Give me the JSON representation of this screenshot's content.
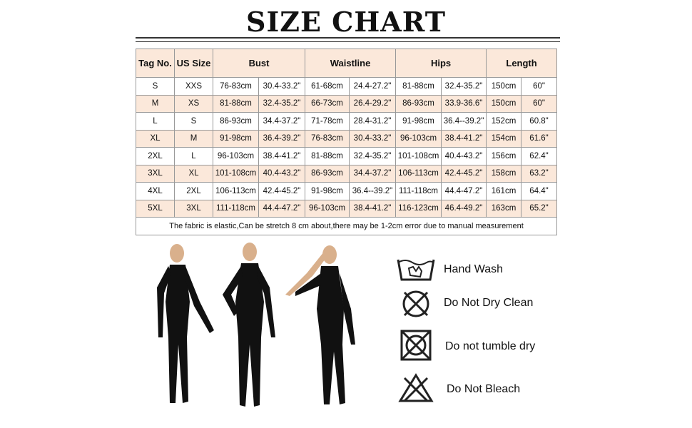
{
  "title": "SIZE CHART",
  "headers": [
    "Tag No.",
    "US Size",
    "Bust",
    "Waistline",
    "Hips",
    "Length"
  ],
  "rows": [
    [
      "S",
      "XXS",
      "76-83cm",
      "30.4-33.2\"",
      "61-68cm",
      "24.4-27.2\"",
      "81-88cm",
      "32.4-35.2\"",
      "150cm",
      "60\""
    ],
    [
      "M",
      "XS",
      "81-88cm",
      "32.4-35.2\"",
      "66-73cm",
      "26.4-29.2\"",
      "86-93cm",
      "33.9-36.6\"",
      "150cm",
      "60\""
    ],
    [
      "L",
      "S",
      "86-93cm",
      "34.4-37.2\"",
      "71-78cm",
      "28.4-31.2\"",
      "91-98cm",
      "36.4--39.2\"",
      "152cm",
      "60.8\""
    ],
    [
      "XL",
      "M",
      "91-98cm",
      "36.4-39.2\"",
      "76-83cm",
      "30.4-33.2\"",
      "96-103cm",
      "38.4-41.2\"",
      "154cm",
      "61.6\""
    ],
    [
      "2XL",
      "L",
      "96-103cm",
      "38.4-41.2\"",
      "81-88cm",
      "32.4-35.2\"",
      "101-108cm",
      "40.4-43.2\"",
      "156cm",
      "62.4\""
    ],
    [
      "3XL",
      "XL",
      "101-108cm",
      "40.4-43.2\"",
      "86-93cm",
      "34.4-37.2\"",
      "106-113cm",
      "42.4-45.2\"",
      "158cm",
      "63.2\""
    ],
    [
      "4XL",
      "2XL",
      "106-113cm",
      "42.4-45.2\"",
      "91-98cm",
      "36.4--39.2\"",
      "111-118cm",
      "44.4-47.2\"",
      "161cm",
      "64.4\""
    ],
    [
      "5XL",
      "3XL",
      "111-118cm",
      "44.4-47.2\"",
      "96-103cm",
      "38.4-41.2\"",
      "116-123cm",
      "46.4-49.2\"",
      "163cm",
      "65.2\""
    ]
  ],
  "note": "The fabric is elastic,Can be stretch 8 cm about,there may be 1-2cm error due to manual measurement",
  "care": [
    {
      "icon": "hand-wash-icon",
      "label": "Hand Wash"
    },
    {
      "icon": "do-not-dry-clean-icon",
      "label": "Do Not Dry Clean"
    },
    {
      "icon": "do-not-tumble-dry-icon",
      "label": "Do not tumble dry"
    },
    {
      "icon": "do-not-bleach-icon",
      "label": "Do Not Bleach"
    }
  ]
}
